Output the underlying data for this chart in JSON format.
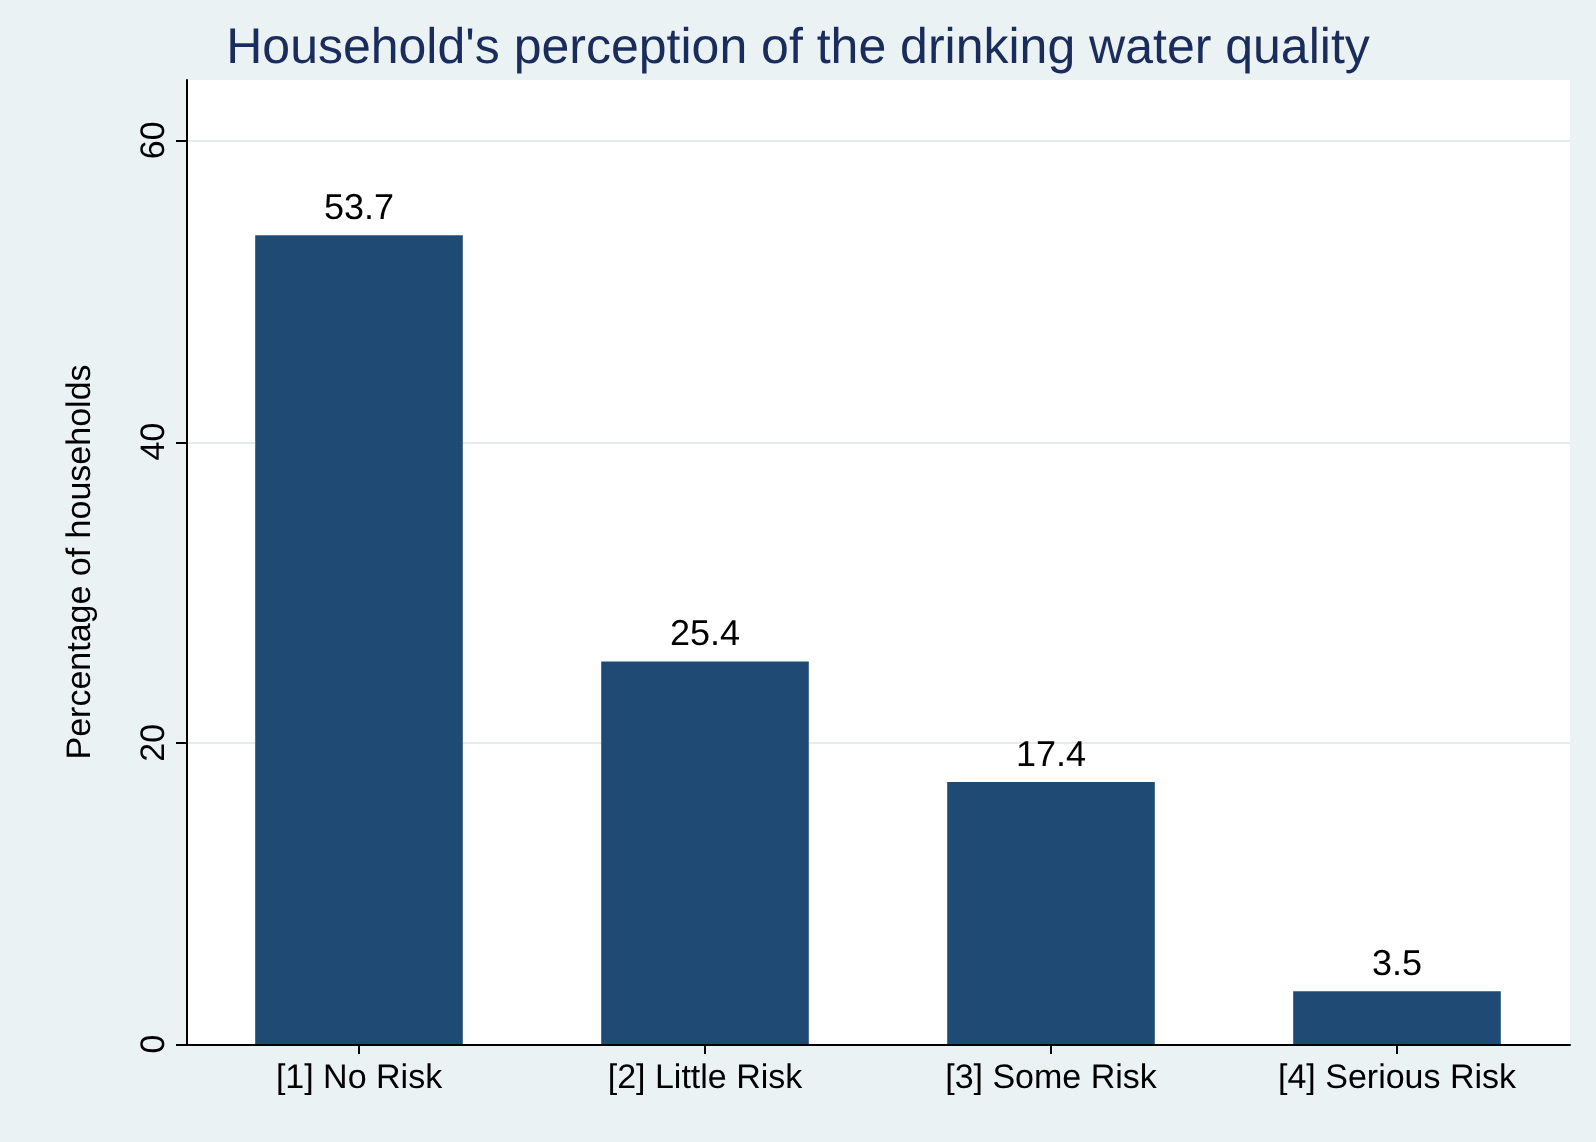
{
  "chart_data": {
    "type": "bar",
    "title": "Household's perception of the drinking water quality",
    "ylabel": "Percentage of households",
    "categories": [
      "[1] No Risk",
      "[2] Little Risk",
      "[3] Some Risk",
      "[4] Serious Risk"
    ],
    "values": [
      53.7,
      25.4,
      17.4,
      3.5
    ],
    "color": "#1f4a73",
    "data_labels": true,
    "ylim": [
      0,
      64
    ],
    "yticks": [
      0,
      20,
      40,
      60
    ],
    "grid": "y"
  }
}
